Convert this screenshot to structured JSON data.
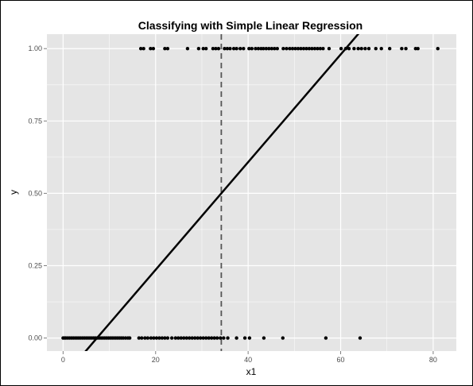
{
  "chart_data": {
    "type": "scatter",
    "title": "Classifying with Simple Linear Regression",
    "xlabel": "x1",
    "ylabel": "y",
    "xlim": [
      -3.5,
      85
    ],
    "ylim": [
      -0.045,
      1.05
    ],
    "x_ticks": [
      0,
      20,
      40,
      60,
      80
    ],
    "y_ticks": [
      0.0,
      0.25,
      0.5,
      0.75,
      1.0
    ],
    "x_tick_labels": [
      "0",
      "20",
      "40",
      "60",
      "80"
    ],
    "y_tick_labels": [
      "0.00",
      "0.25",
      "0.50",
      "0.75",
      "1.00"
    ],
    "grid": true,
    "colors": {
      "panel": "#e5e5e5",
      "grid": "#ffffff",
      "points": "#000000",
      "fit_line": "#000000",
      "threshold_line": "#555555"
    },
    "series": [
      {
        "type": "points",
        "points": [
          [
            0.0,
            0
          ],
          [
            0.3,
            0
          ],
          [
            0.6,
            0
          ],
          [
            1.0,
            0
          ],
          [
            1.4,
            0
          ],
          [
            1.8,
            0
          ],
          [
            2.2,
            0
          ],
          [
            2.6,
            0
          ],
          [
            3.0,
            0
          ],
          [
            3.4,
            0
          ],
          [
            3.8,
            0
          ],
          [
            4.2,
            0
          ],
          [
            4.6,
            0
          ],
          [
            5.0,
            0
          ],
          [
            5.4,
            0
          ],
          [
            5.8,
            0
          ],
          [
            6.2,
            0
          ],
          [
            6.6,
            0
          ],
          [
            7.0,
            0
          ],
          [
            7.4,
            0
          ],
          [
            7.8,
            0
          ],
          [
            8.2,
            0
          ],
          [
            8.6,
            0
          ],
          [
            9.0,
            0
          ],
          [
            9.4,
            0
          ],
          [
            9.8,
            0
          ],
          [
            10.2,
            0
          ],
          [
            10.6,
            0
          ],
          [
            11.0,
            0
          ],
          [
            11.4,
            0
          ],
          [
            11.8,
            0
          ],
          [
            12.2,
            0
          ],
          [
            12.6,
            0
          ],
          [
            13.0,
            0
          ],
          [
            13.5,
            0
          ],
          [
            14.0,
            0
          ],
          [
            14.4,
            0
          ],
          [
            16.4,
            0
          ],
          [
            17.0,
            0
          ],
          [
            17.7,
            0
          ],
          [
            18.3,
            0
          ],
          [
            19.0,
            0
          ],
          [
            19.6,
            0
          ],
          [
            20.2,
            0
          ],
          [
            20.8,
            0
          ],
          [
            21.4,
            0
          ],
          [
            22.0,
            0
          ],
          [
            22.6,
            0
          ],
          [
            23.5,
            0
          ],
          [
            24.3,
            0
          ],
          [
            24.9,
            0
          ],
          [
            25.5,
            0
          ],
          [
            26.1,
            0
          ],
          [
            26.7,
            0
          ],
          [
            27.3,
            0
          ],
          [
            27.9,
            0
          ],
          [
            28.5,
            0
          ],
          [
            29.1,
            0
          ],
          [
            29.7,
            0
          ],
          [
            30.3,
            0
          ],
          [
            30.9,
            0
          ],
          [
            31.5,
            0
          ],
          [
            32.1,
            0
          ],
          [
            32.7,
            0
          ],
          [
            33.3,
            0
          ],
          [
            34.0,
            0
          ],
          [
            34.7,
            0
          ],
          [
            35.6,
            0
          ],
          [
            37.5,
            0
          ],
          [
            39.3,
            0
          ],
          [
            40.3,
            0
          ],
          [
            43.4,
            0
          ],
          [
            47.5,
            0
          ],
          [
            56.8,
            0
          ],
          [
            64.2,
            0
          ],
          [
            16.8,
            1
          ],
          [
            17.4,
            1
          ],
          [
            18.9,
            1
          ],
          [
            19.5,
            1
          ],
          [
            22.0,
            1
          ],
          [
            22.6,
            1
          ],
          [
            26.9,
            1
          ],
          [
            29.3,
            1
          ],
          [
            30.3,
            1
          ],
          [
            30.9,
            1
          ],
          [
            32.4,
            1
          ],
          [
            33.0,
            1
          ],
          [
            33.6,
            1
          ],
          [
            34.9,
            1
          ],
          [
            35.5,
            1
          ],
          [
            36.1,
            1
          ],
          [
            36.9,
            1
          ],
          [
            37.5,
            1
          ],
          [
            38.3,
            1
          ],
          [
            39.0,
            1
          ],
          [
            40.2,
            1
          ],
          [
            40.8,
            1
          ],
          [
            41.6,
            1
          ],
          [
            42.2,
            1
          ],
          [
            42.8,
            1
          ],
          [
            43.3,
            1
          ],
          [
            43.9,
            1
          ],
          [
            44.5,
            1
          ],
          [
            45.1,
            1
          ],
          [
            45.7,
            1
          ],
          [
            46.3,
            1
          ],
          [
            47.6,
            1
          ],
          [
            48.3,
            1
          ],
          [
            49.0,
            1
          ],
          [
            49.6,
            1
          ],
          [
            50.2,
            1
          ],
          [
            50.8,
            1
          ],
          [
            51.4,
            1
          ],
          [
            52.0,
            1
          ],
          [
            52.6,
            1
          ],
          [
            53.2,
            1
          ],
          [
            53.8,
            1
          ],
          [
            54.4,
            1
          ],
          [
            55.0,
            1
          ],
          [
            55.6,
            1
          ],
          [
            56.2,
            1
          ],
          [
            57.5,
            1
          ],
          [
            60.1,
            1
          ],
          [
            61.1,
            1
          ],
          [
            61.8,
            1
          ],
          [
            62.9,
            1
          ],
          [
            63.8,
            1
          ],
          [
            64.5,
            1
          ],
          [
            65.3,
            1
          ],
          [
            66.1,
            1
          ],
          [
            67.6,
            1
          ],
          [
            68.8,
            1
          ],
          [
            70.6,
            1
          ],
          [
            73.2,
            1
          ],
          [
            74.1,
            1
          ],
          [
            76.2,
            1
          ],
          [
            76.7,
            1
          ],
          [
            81.0,
            1
          ]
        ]
      },
      {
        "type": "fit_line",
        "intercept": -0.1362,
        "slope": 0.0186
      },
      {
        "type": "threshold_vline",
        "x": 34.2
      }
    ]
  }
}
